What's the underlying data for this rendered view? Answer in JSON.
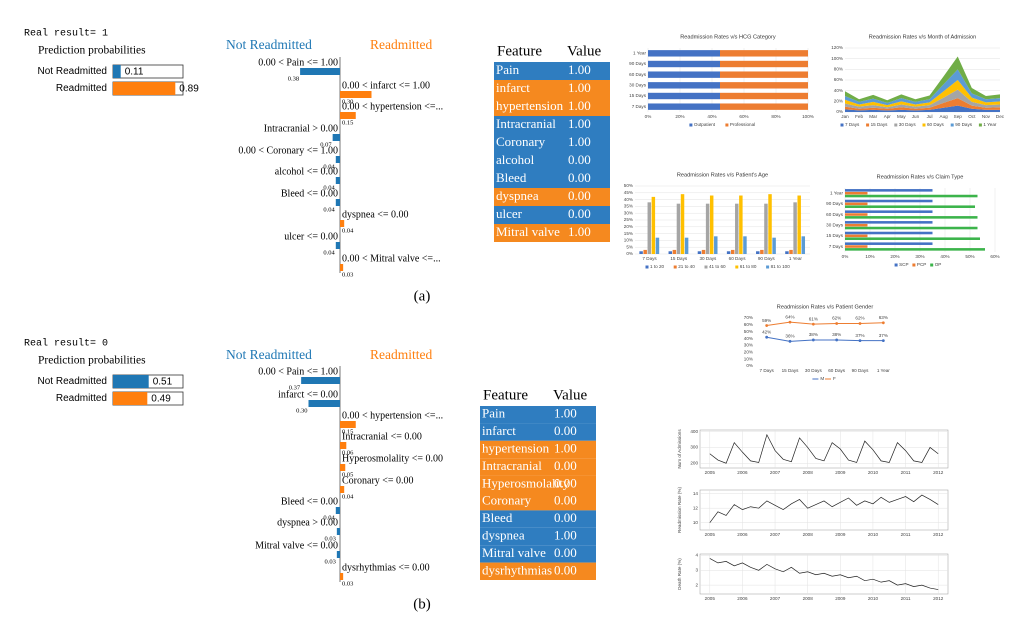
{
  "panels": [
    {
      "label": "(a)",
      "real_result": "Real result= 1",
      "prediction": {
        "title": "Prediction probabilities",
        "classes": [
          "Not Readmitted",
          "Readmitted"
        ],
        "values": [
          0.11,
          0.89
        ],
        "colors": [
          "#1f77b4",
          "#ff7f0e"
        ]
      },
      "explanation": {
        "classes": [
          "Not Readmitted",
          "Readmitted"
        ],
        "features": [
          "0.00 < Pain <= 1.00",
          "0.00 < infarct <= 1.00",
          "0.00 < hypertension <=...",
          "Intracranial > 0.00",
          "0.00 < Coronary <= 1.00",
          "alcohol <= 0.00",
          "Bleed <= 0.00",
          "dyspnea <= 0.00",
          "ulcer <= 0.00",
          "0.00 < Mitral valve <=..."
        ],
        "weights": [
          0.38,
          0.3,
          0.15,
          0.07,
          0.04,
          0.04,
          0.04,
          0.04,
          0.04,
          0.03
        ],
        "value_labels": [
          "0.38",
          "0.30",
          "0.15",
          "0.07",
          "0.04",
          "0.04",
          "0.04",
          "0.04",
          "0.04",
          "0.03"
        ],
        "colors": [
          "#1f77b4",
          "#ff7f0e",
          "#ff7f0e",
          "#1f77b4",
          "#1f77b4",
          "#1f77b4",
          "#1f77b4",
          "#ff7f0e",
          "#1f77b4",
          "#ff7f0e"
        ]
      },
      "table": {
        "header": [
          "Feature",
          "Value"
        ],
        "rows": [
          [
            "Pain",
            "1.00"
          ],
          [
            "infarct",
            "1.00"
          ],
          [
            "hypertension",
            "1.00"
          ],
          [
            "Intracranial",
            "1.00"
          ],
          [
            "Coronary",
            "1.00"
          ],
          [
            "alcohol",
            "0.00"
          ],
          [
            "Bleed",
            "0.00"
          ],
          [
            "dyspnea",
            "0.00"
          ],
          [
            "ulcer",
            "0.00"
          ],
          [
            "Mitral valve",
            "1.00"
          ]
        ],
        "row_colors": [
          "#2f7dc0",
          "#f5891f",
          "#f5891f",
          "#2f7dc0",
          "#2f7dc0",
          "#2f7dc0",
          "#2f7dc0",
          "#f5891f",
          "#2f7dc0",
          "#f5891f"
        ]
      }
    },
    {
      "label": "(b)",
      "real_result": "Real result= 0",
      "prediction": {
        "title": "Prediction probabilities",
        "classes": [
          "Not Readmitted",
          "Readmitted"
        ],
        "values": [
          0.51,
          0.49
        ],
        "colors": [
          "#1f77b4",
          "#ff7f0e"
        ]
      },
      "explanation": {
        "classes": [
          "Not Readmitted",
          "Readmitted"
        ],
        "features": [
          "0.00 < Pain <= 1.00",
          "infarct <= 0.00",
          "0.00 < hypertension <=...",
          "Intracranial <= 0.00",
          "Hyperosmolality <= 0.00",
          "Coronary <= 0.00",
          "Bleed <= 0.00",
          "dyspnea > 0.00",
          "Mitral valve <= 0.00",
          "dysrhythmias <= 0.00"
        ],
        "weights": [
          0.37,
          0.3,
          0.15,
          0.06,
          0.05,
          0.04,
          0.04,
          0.03,
          0.03,
          0.03
        ],
        "value_labels": [
          "0.37",
          "0.30",
          "0.15",
          "0.06",
          "0.05",
          "0.04",
          "0.04",
          "0.03",
          "0.03",
          "0.03"
        ],
        "colors": [
          "#1f77b4",
          "#1f77b4",
          "#ff7f0e",
          "#ff7f0e",
          "#ff7f0e",
          "#ff7f0e",
          "#1f77b4",
          "#1f77b4",
          "#1f77b4",
          "#ff7f0e"
        ]
      },
      "table": {
        "header": [
          "Feature",
          "Value"
        ],
        "rows": [
          [
            "Pain",
            "1.00"
          ],
          [
            "infarct",
            "0.00"
          ],
          [
            "hypertension",
            "1.00"
          ],
          [
            "Intracranial",
            "0.00"
          ],
          [
            "Hyperosmolality",
            "0.00"
          ],
          [
            "Coronary",
            "0.00"
          ],
          [
            "Bleed",
            "0.00"
          ],
          [
            "dyspnea",
            "1.00"
          ],
          [
            "Mitral valve",
            "0.00"
          ],
          [
            "dysrhythmias",
            "0.00"
          ]
        ],
        "row_colors": [
          "#2f7dc0",
          "#2f7dc0",
          "#f5891f",
          "#f5891f",
          "#f5891f",
          "#f5891f",
          "#2f7dc0",
          "#2f7dc0",
          "#2f7dc0",
          "#f5891f"
        ]
      }
    }
  ],
  "chart_data": [
    {
      "type": "hbar",
      "stacked": true,
      "grid": true,
      "title": "Readmission Rates v/s HCG Category",
      "categories": [
        "1 Year",
        "90 Days",
        "60 Days",
        "30 Days",
        "15 Days",
        "7 Days"
      ],
      "series": [
        {
          "name": "Outpatient",
          "color": "#4472c4",
          "values": [
            45,
            45,
            45,
            45,
            45,
            45
          ]
        },
        {
          "name": "Professional",
          "color": "#ed7d31",
          "values": [
            55,
            55,
            55,
            55,
            55,
            55
          ]
        }
      ],
      "xlim": [
        0,
        100
      ],
      "xticks": [
        {
          "value": 0,
          "label": "0%"
        },
        {
          "value": 20,
          "label": "20%"
        },
        {
          "value": 40,
          "label": "40%"
        },
        {
          "value": 60,
          "label": "60%"
        },
        {
          "value": 80,
          "label": "80%"
        },
        {
          "value": 100,
          "label": "100%"
        }
      ]
    },
    {
      "type": "area",
      "grid": true,
      "title": "Readmission Rates v/s Month of Admission",
      "categories": [
        "Jan",
        "Feb",
        "Mar",
        "Apr",
        "May",
        "Jun",
        "Jul",
        "Aug",
        "Sep",
        "Oct",
        "Nov",
        "Dec"
      ],
      "series": [
        {
          "name": "7 Days",
          "color": "#4472c4",
          "values": [
            5,
            3,
            4,
            3,
            4,
            3,
            4,
            8,
            12,
            6,
            4,
            4
          ]
        },
        {
          "name": "15 Days",
          "color": "#ed7d31",
          "values": [
            5,
            3,
            4,
            3,
            5,
            3,
            4,
            9,
            14,
            6,
            4,
            5
          ]
        },
        {
          "name": "30 Days",
          "color": "#a5a5a5",
          "values": [
            6,
            4,
            5,
            3,
            5,
            4,
            5,
            10,
            16,
            7,
            5,
            5
          ]
        },
        {
          "name": "60 Days",
          "color": "#ffc000",
          "values": [
            7,
            4,
            6,
            4,
            6,
            4,
            5,
            12,
            18,
            8,
            5,
            6
          ]
        },
        {
          "name": "90 Days",
          "color": "#5b9bd5",
          "values": [
            7,
            5,
            6,
            4,
            6,
            5,
            6,
            13,
            20,
            8,
            6,
            6
          ]
        },
        {
          "name": "1 Year",
          "color": "#70ad47",
          "values": [
            9,
            5,
            7,
            5,
            7,
            5,
            7,
            15,
            24,
            10,
            6,
            7
          ]
        }
      ],
      "ylim": [
        0,
        120
      ],
      "yticks": [
        {
          "value": 0,
          "label": "0%"
        },
        {
          "value": 20,
          "label": "20%"
        },
        {
          "value": 40,
          "label": "40%"
        },
        {
          "value": 60,
          "label": "60%"
        },
        {
          "value": 80,
          "label": "80%"
        },
        {
          "value": 100,
          "label": "100%"
        },
        {
          "value": 120,
          "label": "120%"
        }
      ]
    },
    {
      "type": "bar",
      "grid": true,
      "title": "Readmission Rates v/s Patient's Age",
      "categories": [
        "7 Days",
        "15 Days",
        "30 Days",
        "60 Days",
        "90 Days",
        "1 Year"
      ],
      "series": [
        {
          "name": "1 to 20",
          "color": "#4472c4",
          "values": [
            2,
            2,
            2,
            2,
            2,
            2
          ]
        },
        {
          "name": "21 to 40",
          "color": "#ed7d31",
          "values": [
            3,
            3,
            3,
            3,
            3,
            3
          ]
        },
        {
          "name": "41 to 60",
          "color": "#a5a5a5",
          "values": [
            38,
            37,
            37,
            37,
            37,
            38
          ]
        },
        {
          "name": "61 to 80",
          "color": "#ffc000",
          "values": [
            42,
            44,
            43,
            43,
            44,
            43
          ]
        },
        {
          "name": "81 to 100",
          "color": "#5b9bd5",
          "values": [
            12,
            12,
            13,
            13,
            12,
            13
          ]
        }
      ],
      "ylim": [
        0,
        50
      ],
      "yticks": [
        {
          "value": 0,
          "label": "0%"
        },
        {
          "value": 5,
          "label": "5%"
        },
        {
          "value": 10,
          "label": "10%"
        },
        {
          "value": 15,
          "label": "15%"
        },
        {
          "value": 20,
          "label": "20%"
        },
        {
          "value": 25,
          "label": "25%"
        },
        {
          "value": 30,
          "label": "30%"
        },
        {
          "value": 35,
          "label": "35%"
        },
        {
          "value": 40,
          "label": "40%"
        },
        {
          "value": 45,
          "label": "45%"
        },
        {
          "value": 50,
          "label": "50%"
        }
      ]
    },
    {
      "type": "hbar",
      "stacked": false,
      "grid": true,
      "title": "Readmission Rates v/s Claim Type",
      "categories": [
        "1 Year",
        "90 Days",
        "60 Days",
        "30 Days",
        "15 Days",
        "7 Days"
      ],
      "series": [
        {
          "name": "SCP",
          "color": "#4472c4",
          "values": [
            35,
            35,
            35,
            35,
            35,
            35
          ]
        },
        {
          "name": "PCP",
          "color": "#ed7d31",
          "values": [
            9,
            9,
            9,
            9,
            9,
            9
          ]
        },
        {
          "name": "OP",
          "color": "#3cb44b",
          "values": [
            53,
            52,
            53,
            53,
            54,
            56
          ]
        }
      ],
      "xlim": [
        0,
        60
      ],
      "xticks": [
        {
          "value": 0,
          "label": "0%"
        },
        {
          "value": 10,
          "label": "10%"
        },
        {
          "value": 20,
          "label": "20%"
        },
        {
          "value": 30,
          "label": "30%"
        },
        {
          "value": 40,
          "label": "40%"
        },
        {
          "value": 50,
          "label": "50%"
        },
        {
          "value": 60,
          "label": "60%"
        }
      ]
    },
    {
      "type": "line",
      "grid": false,
      "markers": true,
      "title": "Readmission Rates v/s Patient Gender",
      "categories": [
        "7 Days",
        "15 Days",
        "30 Days",
        "60 Days",
        "90 Days",
        "1 Year"
      ],
      "series": [
        {
          "name": "M",
          "color": "#4472c4",
          "values": [
            42,
            36,
            38,
            38,
            37,
            37
          ],
          "value_labels": [
            "42%",
            "36%",
            "38%",
            "38%",
            "37%",
            "37%"
          ]
        },
        {
          "name": "F",
          "color": "#ed7d31",
          "values": [
            59,
            64,
            61,
            62,
            62,
            63
          ],
          "value_labels": [
            "59%",
            "64%",
            "61%",
            "62%",
            "62%",
            "63%"
          ]
        }
      ],
      "ylim": [
        0,
        70
      ],
      "yticks": [
        {
          "value": 0,
          "label": "0%"
        },
        {
          "value": 10,
          "label": "10%"
        },
        {
          "value": 20,
          "label": "20%"
        },
        {
          "value": 30,
          "label": "30%"
        },
        {
          "value": 40,
          "label": "40%"
        },
        {
          "value": 50,
          "label": "50%"
        },
        {
          "value": 60,
          "label": "60%"
        },
        {
          "value": 70,
          "label": "70%"
        }
      ]
    },
    {
      "type": "line",
      "grid": true,
      "ylabel": "Num of Admissions",
      "color": "#222222",
      "x": [
        2005,
        2005.25,
        2005.5,
        2005.75,
        2006,
        2006.25,
        2006.5,
        2006.75,
        2007,
        2007.25,
        2007.5,
        2007.75,
        2008,
        2008.25,
        2008.5,
        2008.75,
        2009,
        2009.25,
        2009.5,
        2009.75,
        2010,
        2010.25,
        2010.5,
        2010.75,
        2011,
        2011.25,
        2011.5,
        2011.75,
        2012
      ],
      "values": [
        260,
        220,
        200,
        330,
        270,
        215,
        205,
        380,
        280,
        225,
        210,
        360,
        300,
        230,
        215,
        330,
        290,
        220,
        205,
        340,
        285,
        215,
        205,
        330,
        280,
        215,
        205,
        300,
        260
      ],
      "xlim": [
        2004.7,
        2012.3
      ],
      "xticks": [
        2005,
        2006,
        2007,
        2008,
        2009,
        2010,
        2011,
        2012
      ],
      "ylim": [
        170,
        410
      ],
      "yticks": [
        200,
        300,
        400
      ]
    },
    {
      "type": "line",
      "grid": true,
      "ylabel": "Readmission Rate (%)",
      "color": "#222222",
      "x": [
        2005,
        2005.25,
        2005.5,
        2005.75,
        2006,
        2006.25,
        2006.5,
        2006.75,
        2007,
        2007.25,
        2007.5,
        2007.75,
        2008,
        2008.25,
        2008.5,
        2008.75,
        2009,
        2009.25,
        2009.5,
        2009.75,
        2010,
        2010.25,
        2010.5,
        2010.75,
        2011,
        2011.25,
        2011.5,
        2011.75,
        2012
      ],
      "values": [
        10,
        11.5,
        11,
        12.5,
        11.8,
        12.2,
        12,
        13,
        12.4,
        11.8,
        12.6,
        13.2,
        12,
        12.5,
        13,
        12.2,
        12.8,
        13.4,
        12.4,
        13,
        12.6,
        13.5,
        12.8,
        13.2,
        13.6,
        12.9,
        13.8,
        13.2,
        12.5
      ],
      "xlim": [
        2004.7,
        2012.3
      ],
      "xticks": [
        2005,
        2006,
        2007,
        2008,
        2009,
        2010,
        2011,
        2012
      ],
      "ylim": [
        9,
        14.5
      ],
      "yticks": [
        10,
        12,
        14
      ]
    },
    {
      "type": "line",
      "grid": true,
      "ylabel": "Death Rate (%)",
      "color": "#222222",
      "x": [
        2005,
        2005.25,
        2005.5,
        2005.75,
        2006,
        2006.25,
        2006.5,
        2006.75,
        2007,
        2007.25,
        2007.5,
        2007.75,
        2008,
        2008.25,
        2008.5,
        2008.75,
        2009,
        2009.25,
        2009.5,
        2009.75,
        2010,
        2010.25,
        2010.5,
        2010.75,
        2011,
        2011.25,
        2011.5,
        2011.75,
        2012
      ],
      "values": [
        3.8,
        3.5,
        3.6,
        3.3,
        3.5,
        3.2,
        3.0,
        3.4,
        3.1,
        2.9,
        3.2,
        2.8,
        2.9,
        2.7,
        2.8,
        2.6,
        2.7,
        2.5,
        2.6,
        2.3,
        2.4,
        2.2,
        2.3,
        2.0,
        2.1,
        1.9,
        2.0,
        1.8,
        1.7
      ],
      "xlim": [
        2004.7,
        2012.3
      ],
      "xticks": [
        2005,
        2006,
        2007,
        2008,
        2009,
        2010,
        2011,
        2012
      ],
      "ylim": [
        1.4,
        4.1
      ],
      "yticks": [
        2,
        3,
        4
      ]
    }
  ]
}
